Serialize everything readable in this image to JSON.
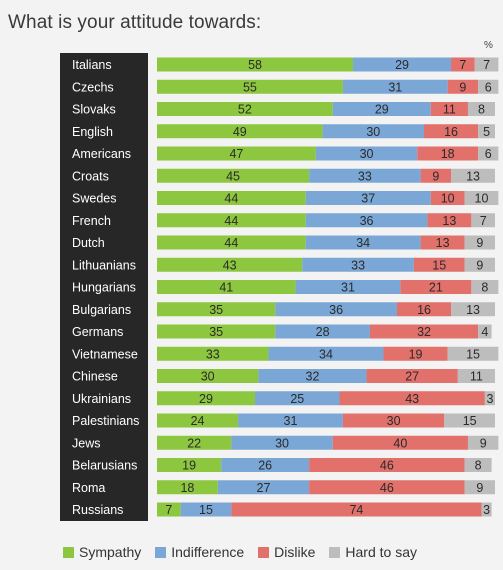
{
  "chart_data": {
    "type": "bar",
    "orientation": "horizontal",
    "stacked": true,
    "title": "What is your attitude towards:",
    "unit": "%",
    "categories": [
      "Italians",
      "Czechs",
      "Slovaks",
      "English",
      "Americans",
      "Croats",
      "Swedes",
      "French",
      "Dutch",
      "Lithuanians",
      "Hungarians",
      "Bulgarians",
      "Germans",
      "Vietnamese",
      "Chinese",
      "Ukrainians",
      "Palestinians",
      "Jews",
      "Belarusians",
      "Roma",
      "Russians"
    ],
    "series": [
      {
        "name": "Sympathy",
        "color": "#8dc63f",
        "values": [
          58,
          55,
          52,
          49,
          47,
          45,
          44,
          44,
          44,
          43,
          41,
          35,
          35,
          33,
          30,
          29,
          24,
          22,
          19,
          18,
          7
        ]
      },
      {
        "name": "Indifference",
        "color": "#7aa7d6",
        "values": [
          29,
          31,
          29,
          30,
          30,
          33,
          37,
          36,
          34,
          33,
          31,
          36,
          28,
          34,
          32,
          25,
          31,
          30,
          26,
          27,
          15
        ]
      },
      {
        "name": "Dislike",
        "color": "#e2706b",
        "values": [
          7,
          9,
          11,
          16,
          18,
          9,
          10,
          13,
          13,
          15,
          21,
          16,
          32,
          19,
          27,
          43,
          30,
          40,
          46,
          46,
          74
        ]
      },
      {
        "name": "Hard to say",
        "color": "#bdbdbd",
        "values": [
          7,
          6,
          8,
          5,
          6,
          13,
          10,
          7,
          9,
          9,
          8,
          13,
          4,
          15,
          11,
          3,
          15,
          9,
          8,
          9,
          3
        ]
      }
    ],
    "legend_position": "bottom-left",
    "grid": false
  }
}
